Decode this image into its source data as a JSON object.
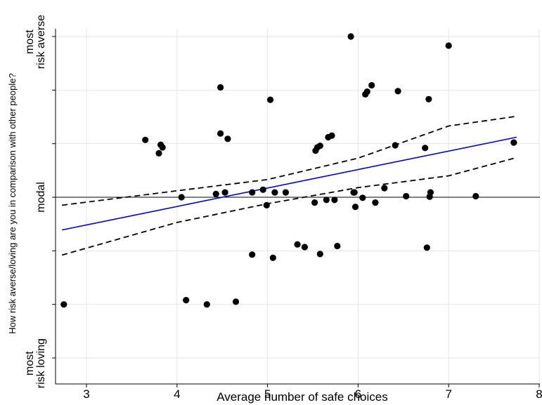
{
  "chart_data": {
    "type": "scatter",
    "xlabel": "Average number of safe choices",
    "ylabel": "How risk averse/loving are you in comparison with other people?",
    "xlim": [
      2.73,
      8.0
    ],
    "ylim": [
      -3.25,
      3.0
    ],
    "x_ticks": [
      3,
      4,
      5,
      6,
      7,
      8
    ],
    "y_category_labels": [
      {
        "y": 2.9,
        "lines": [
          "most",
          "risk averse"
        ]
      },
      {
        "y": 0,
        "lines": [
          "modal"
        ]
      },
      {
        "y": -3.1,
        "lines": [
          "most",
          "risk loving"
        ]
      }
    ],
    "y_gridlines": [
      -3.0,
      -2.0,
      -1.0,
      0,
      1.0,
      2.0,
      3.0
    ],
    "reference_line_y": 0,
    "series": [
      {
        "type": "scatter",
        "x": [
          2.75,
          3.65,
          3.8,
          3.82,
          3.84,
          4.05,
          4.1,
          4.33,
          4.43,
          4.48,
          4.48,
          4.53,
          4.56,
          4.65,
          4.83,
          4.83,
          4.95,
          4.99,
          5.03,
          5.06,
          5.08,
          5.2,
          5.33,
          5.41,
          5.52,
          5.53,
          5.55,
          5.58,
          5.58,
          5.65,
          5.67,
          5.71,
          5.74,
          5.77,
          5.92,
          5.95,
          5.96,
          5.97,
          6.05,
          6.08,
          6.1,
          6.15,
          6.19,
          6.29,
          6.41,
          6.44,
          6.53,
          6.74,
          6.76,
          6.78,
          6.79,
          6.8,
          7.0,
          7.3,
          7.72
        ],
        "y": [
          -2.0,
          1.07,
          0.82,
          0.98,
          0.93,
          0.0,
          -1.92,
          -2.0,
          0.06,
          1.19,
          2.05,
          0.09,
          1.09,
          -1.95,
          0.09,
          -1.07,
          0.14,
          -0.15,
          1.82,
          -1.13,
          0.09,
          0.09,
          -0.88,
          -0.93,
          -0.1,
          0.87,
          0.93,
          0.96,
          -1.06,
          -0.05,
          1.12,
          1.15,
          -0.05,
          -0.91,
          3.0,
          0.09,
          0.09,
          -0.18,
          -0.01,
          1.92,
          1.97,
          2.09,
          -0.1,
          0.17,
          0.97,
          1.98,
          0.02,
          0.92,
          -0.94,
          1.83,
          0.01,
          0.09,
          2.83,
          0.02,
          1.02
        ]
      },
      {
        "type": "line",
        "x": [
          2.73,
          7.75
        ],
        "y": [
          -0.61,
          1.12
        ],
        "color": "#0000cc"
      },
      {
        "type": "line",
        "dashed": true,
        "x": [
          2.73,
          4.0,
          5.0,
          6.0,
          7.0,
          7.75
        ],
        "y": [
          -1.08,
          -0.47,
          -0.12,
          0.18,
          0.4,
          0.74
        ],
        "color": "#000000"
      },
      {
        "type": "line",
        "dashed": true,
        "x": [
          2.73,
          4.0,
          5.0,
          6.0,
          7.0,
          7.75
        ],
        "y": [
          -0.15,
          0.12,
          0.33,
          0.73,
          1.33,
          1.51
        ],
        "color": "#000000"
      }
    ]
  }
}
